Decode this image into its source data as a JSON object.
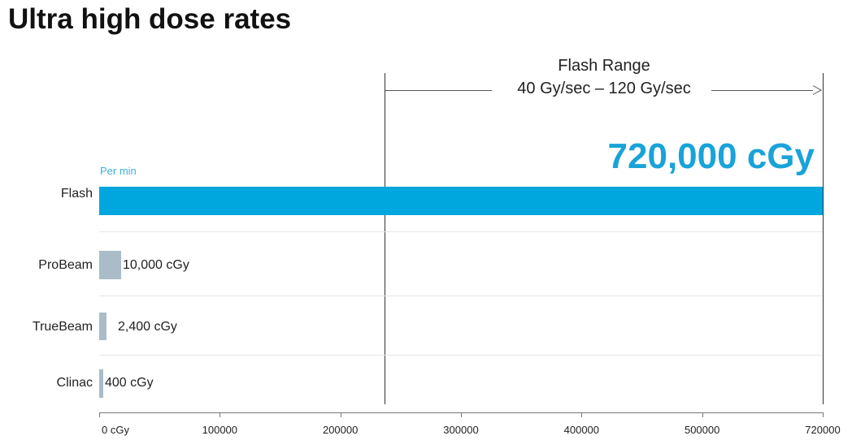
{
  "title": "Ultra high dose rates",
  "chart_data": {
    "type": "bar",
    "orientation": "horizontal",
    "title": "Ultra high dose rates",
    "unit_note": "Per min",
    "categories": [
      "Flash",
      "ProBeam",
      "TrueBeam",
      "Clinac"
    ],
    "values": [
      720000,
      10000,
      2400,
      400
    ],
    "value_labels": [
      "720,000 cGy",
      "10,000 cGy",
      "2,400 cGy",
      "400 cGy"
    ],
    "xlim": [
      0,
      720000
    ],
    "x_ticks": [
      "0 cGy",
      "100000",
      "200000",
      "300000",
      "400000",
      "500000",
      "720000"
    ],
    "colors": [
      "#00a6de",
      "#a9bcc8",
      "#a9bcc8",
      "#a9bcc8"
    ],
    "annotation": {
      "title": "Flash Range",
      "range": "40 Gy/sec – 120 Gy/sec"
    }
  }
}
